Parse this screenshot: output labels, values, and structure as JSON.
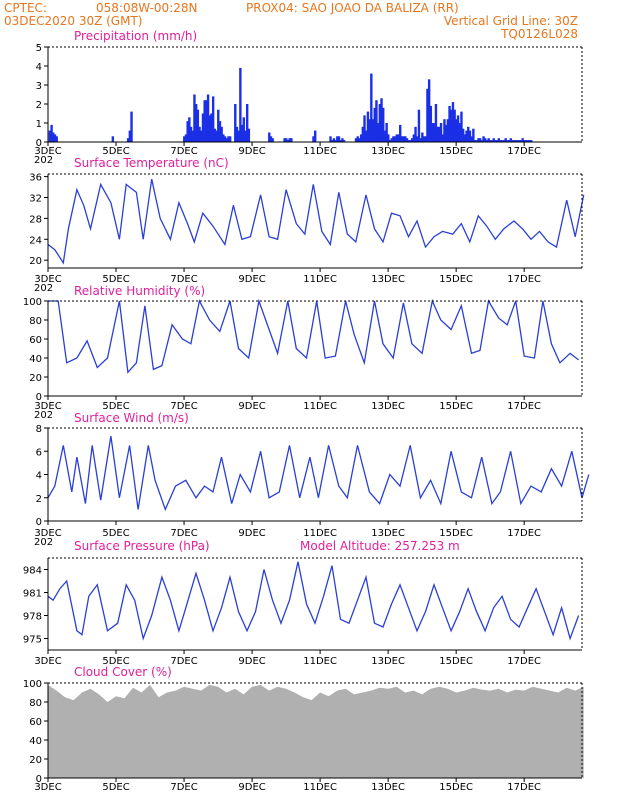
{
  "header": {
    "line1_left": "CPTEC:",
    "coords": "058:08W-00:28N",
    "station": "PROX04: SAO JOAO DA BALIZA (RR)",
    "date": "03DEC2020 30Z (GMT)",
    "grid_note": "Vertical Grid Line: 30Z",
    "model_code": "TQ0126L028"
  },
  "x_ticks": [
    "3DEC",
    "5DEC",
    "7DEC",
    "9DEC",
    "11DEC",
    "13DEC",
    "15DEC",
    "17DEC"
  ],
  "x_overlap_label": "202",
  "colors": {
    "line": "#2a3fd6",
    "bar": "#1a2fe6",
    "cloud": "#b0b0b0",
    "title": "#e0209a",
    "header": "#e8761e"
  },
  "chart_data": [
    {
      "type": "bar",
      "title": "Precipitation (mm/h)",
      "ylim": [
        0,
        5
      ],
      "yticks": [
        0,
        1,
        2,
        3,
        4,
        5
      ],
      "x_unit": "days since 3DEC",
      "x": [
        0.05,
        0.1,
        0.15,
        0.2,
        0.25,
        1.9,
        2.35,
        2.4,
        2.45,
        4.0,
        4.05,
        4.1,
        4.15,
        4.2,
        4.25,
        4.3,
        4.35,
        4.4,
        4.45,
        4.5,
        4.55,
        4.6,
        4.65,
        4.7,
        4.75,
        4.8,
        4.85,
        4.9,
        4.95,
        5.0,
        5.05,
        5.1,
        5.15,
        5.2,
        5.25,
        5.3,
        5.35,
        5.5,
        5.55,
        5.6,
        5.65,
        5.7,
        5.75,
        5.8,
        5.85,
        5.9,
        6.5,
        6.55,
        6.6,
        6.95,
        7.0,
        7.05,
        7.1,
        7.15,
        7.8,
        7.85,
        8.3,
        8.35,
        8.4,
        8.45,
        8.5,
        8.55,
        8.6,
        8.65,
        8.7,
        9.05,
        9.1,
        9.15,
        9.2,
        9.25,
        9.3,
        9.35,
        9.4,
        9.45,
        9.5,
        9.55,
        9.6,
        9.65,
        9.7,
        9.75,
        9.8,
        9.85,
        9.9,
        9.95,
        10.0,
        10.05,
        10.1,
        10.15,
        10.2,
        10.25,
        10.3,
        10.35,
        10.4,
        10.45,
        10.5,
        10.55,
        10.6,
        10.65,
        10.7,
        10.75,
        10.8,
        10.85,
        10.9,
        10.95,
        11.0,
        11.05,
        11.1,
        11.15,
        11.2,
        11.25,
        11.3,
        11.35,
        11.4,
        11.45,
        11.5,
        11.55,
        11.6,
        11.65,
        11.7,
        11.75,
        11.8,
        11.85,
        11.9,
        11.95,
        12.0,
        12.05,
        12.1,
        12.15,
        12.2,
        12.25,
        12.3,
        12.35,
        12.4,
        12.45,
        12.5,
        12.55,
        12.6,
        12.65,
        12.7,
        12.75,
        12.8,
        12.85,
        12.9,
        12.95,
        13.0,
        13.05,
        13.1,
        13.15,
        13.2,
        13.25,
        13.3,
        13.35,
        13.4,
        13.45,
        13.5,
        13.55,
        13.6,
        13.65,
        13.7,
        13.75,
        13.8,
        13.85,
        13.9,
        13.95,
        14.0,
        14.05,
        14.1,
        14.15,
        14.2
      ],
      "values": [
        0.6,
        0.9,
        0.5,
        0.4,
        0.3,
        0.3,
        0.2,
        0.6,
        1.6,
        0.3,
        0.4,
        1.1,
        1.3,
        0.8,
        0.6,
        2.5,
        2.0,
        1.7,
        0.8,
        0.6,
        1.5,
        2.2,
        2.2,
        2.5,
        1.4,
        1.5,
        2.4,
        0.7,
        0.6,
        1.7,
        1.1,
        0.8,
        0.4,
        0.3,
        0.2,
        0.3,
        0.3,
        2.0,
        0.8,
        0.6,
        3.9,
        0.9,
        1.3,
        0.6,
        2.0,
        0.7,
        0.5,
        0.3,
        0.2,
        0.2,
        0.2,
        0.1,
        0.2,
        0.2,
        0.3,
        0.6,
        0.3,
        0.1,
        0.2,
        0.1,
        0.3,
        0.3,
        0.1,
        0.2,
        0.1,
        0.2,
        0.3,
        0.2,
        0.4,
        0.8,
        1.4,
        0.6,
        1.6,
        1.2,
        3.6,
        1.2,
        1.8,
        2.2,
        1.0,
        2.0,
        2.3,
        1.8,
        0.6,
        1.0,
        0.4,
        0.1,
        0.2,
        0.3,
        0.3,
        0.4,
        0.4,
        0.9,
        0.3,
        0.3,
        0.3,
        0.2,
        0.1,
        0.1,
        0.2,
        0.4,
        0.8,
        0.3,
        1.7,
        0.2,
        0.5,
        0.3,
        0.3,
        2.8,
        3.3,
        1.9,
        1.0,
        1.0,
        2.0,
        0.8,
        0.8,
        1.0,
        0.4,
        1.2,
        0.9,
        1.2,
        1.9,
        1.7,
        2.1,
        1.7,
        1.2,
        1.4,
        1.0,
        1.6,
        0.7,
        0.4,
        0.6,
        0.8,
        0.6,
        0.3,
        0.7,
        0.1,
        0.1,
        0.2,
        0.2,
        0.1,
        0.3,
        0.2,
        0.1,
        0.2,
        0.1,
        0.1,
        0.2,
        0.1,
        0.1,
        0.2,
        0.1,
        0.1,
        0.1,
        0.2,
        0.1,
        0.1,
        0.2,
        0.1,
        0.1,
        0.1,
        0.1,
        0.1,
        0.1,
        0.2,
        0.1,
        0.1,
        0.1,
        0.1,
        0.1
      ]
    },
    {
      "type": "line",
      "title": "Surface Temperature (nC)",
      "ylim": [
        18.5,
        36.5
      ],
      "yticks": [
        20,
        24,
        28,
        32,
        36
      ],
      "x_unit": "days since 3DEC",
      "x": [
        0.0,
        0.2,
        0.45,
        0.6,
        0.85,
        1.05,
        1.25,
        1.55,
        1.85,
        2.1,
        2.3,
        2.6,
        2.8,
        3.05,
        3.3,
        3.6,
        3.85,
        4.1,
        4.3,
        4.55,
        4.85,
        5.2,
        5.45,
        5.7,
        5.95,
        6.25,
        6.5,
        6.75,
        7.0,
        7.3,
        7.55,
        7.8,
        8.05,
        8.3,
        8.55,
        8.8,
        9.05,
        9.35,
        9.6,
        9.85,
        10.1,
        10.35,
        10.6,
        10.85,
        11.1,
        11.35,
        11.6,
        11.9,
        12.15,
        12.4,
        12.65,
        12.9,
        13.15,
        13.4,
        13.7,
        13.95,
        14.2,
        14.45,
        14.7,
        14.95,
        15.25,
        15.5,
        15.75
      ],
      "values": [
        23.0,
        22.0,
        19.5,
        26.0,
        33.5,
        30.5,
        26.0,
        34.5,
        31.0,
        24.0,
        34.5,
        33.0,
        24.0,
        35.5,
        28.0,
        24.0,
        31.0,
        27.0,
        23.5,
        29.0,
        26.5,
        23.0,
        30.5,
        24.0,
        24.5,
        32.5,
        24.5,
        24.0,
        33.5,
        27.0,
        25.0,
        34.5,
        25.5,
        23.0,
        33.0,
        25.0,
        23.5,
        32.5,
        26.0,
        23.5,
        29.0,
        28.5,
        24.5,
        27.5,
        22.5,
        24.5,
        25.5,
        25.0,
        27.0,
        23.5,
        28.5,
        26.5,
        24.0,
        26.0,
        27.5,
        26.0,
        24.0,
        25.5,
        23.5,
        22.5,
        31.5,
        24.5,
        32.5
      ]
    },
    {
      "type": "line",
      "title": "Relative Humidity (%)",
      "ylim": [
        0,
        100
      ],
      "yticks": [
        0,
        20,
        40,
        60,
        80,
        100
      ],
      "x_unit": "days since 3DEC",
      "x": [
        0.0,
        0.3,
        0.55,
        0.85,
        1.15,
        1.45,
        1.75,
        2.1,
        2.35,
        2.6,
        2.85,
        3.1,
        3.35,
        3.65,
        3.95,
        4.2,
        4.45,
        4.75,
        5.05,
        5.35,
        5.6,
        5.9,
        6.2,
        6.5,
        6.75,
        7.05,
        7.3,
        7.6,
        7.9,
        8.15,
        8.45,
        8.75,
        9.0,
        9.3,
        9.6,
        9.85,
        10.15,
        10.45,
        10.7,
        11.0,
        11.3,
        11.55,
        11.85,
        12.15,
        12.45,
        12.7,
        12.95,
        13.25,
        13.5,
        13.75,
        14.0,
        14.3,
        14.55,
        14.8,
        15.05,
        15.35,
        15.6
      ],
      "values": [
        100,
        100,
        35,
        40,
        58,
        30,
        40,
        100,
        25,
        35,
        95,
        28,
        32,
        75,
        60,
        55,
        100,
        80,
        68,
        100,
        50,
        40,
        100,
        70,
        45,
        100,
        50,
        40,
        100,
        40,
        42,
        100,
        65,
        35,
        100,
        55,
        40,
        98,
        55,
        45,
        100,
        80,
        70,
        95,
        45,
        48,
        100,
        82,
        75,
        100,
        42,
        40,
        100,
        55,
        35,
        45,
        38
      ]
    },
    {
      "type": "line",
      "title": "Surface Wind (m/s)",
      "ylim": [
        0,
        8
      ],
      "yticks": [
        0,
        2,
        4,
        6,
        8
      ],
      "x_unit": "days since 3DEC",
      "x": [
        0.0,
        0.2,
        0.45,
        0.7,
        0.85,
        1.1,
        1.3,
        1.55,
        1.85,
        2.1,
        2.4,
        2.65,
        2.95,
        3.15,
        3.45,
        3.75,
        4.05,
        4.35,
        4.6,
        4.85,
        5.1,
        5.4,
        5.65,
        5.95,
        6.25,
        6.5,
        6.8,
        7.1,
        7.4,
        7.7,
        7.95,
        8.25,
        8.55,
        8.8,
        9.1,
        9.45,
        9.75,
        10.05,
        10.35,
        10.65,
        10.95,
        11.25,
        11.55,
        11.85,
        12.15,
        12.45,
        12.75,
        13.05,
        13.3,
        13.6,
        13.9,
        14.2,
        14.5,
        14.8,
        15.1,
        15.4,
        15.7,
        15.9
      ],
      "values": [
        2.0,
        3.0,
        6.5,
        2.5,
        5.5,
        1.5,
        6.5,
        1.8,
        7.3,
        2.0,
        6.5,
        1.0,
        6.5,
        3.5,
        1.0,
        3.0,
        3.5,
        2.0,
        3.0,
        2.5,
        5.5,
        1.5,
        4.0,
        2.5,
        6.0,
        2.0,
        2.5,
        6.5,
        2.0,
        5.5,
        2.0,
        6.5,
        3.0,
        2.0,
        6.5,
        2.5,
        1.5,
        4.0,
        3.0,
        6.5,
        2.0,
        3.5,
        1.5,
        6.0,
        2.5,
        2.0,
        5.5,
        1.5,
        2.5,
        6.0,
        1.5,
        3.0,
        2.5,
        4.5,
        3.0,
        6.0,
        2.0,
        4.0
      ]
    },
    {
      "type": "line",
      "title": "Surface Pressure (hPa)",
      "subtitle": "Model Altitude: 257.253 m",
      "ylim": [
        973.5,
        985.5
      ],
      "yticks": [
        975,
        978,
        981,
        984
      ],
      "x_unit": "days since 3DEC",
      "x": [
        0.0,
        0.15,
        0.35,
        0.55,
        0.85,
        1.0,
        1.2,
        1.45,
        1.75,
        2.05,
        2.3,
        2.55,
        2.8,
        3.05,
        3.35,
        3.6,
        3.85,
        4.05,
        4.35,
        4.6,
        4.85,
        5.1,
        5.35,
        5.6,
        5.85,
        6.1,
        6.35,
        6.6,
        6.85,
        7.1,
        7.35,
        7.6,
        7.85,
        8.1,
        8.35,
        8.6,
        8.85,
        9.1,
        9.35,
        9.6,
        9.85,
        10.1,
        10.35,
        10.6,
        10.85,
        11.1,
        11.35,
        11.6,
        11.85,
        12.1,
        12.35,
        12.6,
        12.85,
        13.1,
        13.35,
        13.6,
        13.85,
        14.1,
        14.35,
        14.6,
        14.85,
        15.1,
        15.35,
        15.6
      ],
      "values": [
        980.5,
        980.0,
        981.5,
        982.5,
        976.0,
        975.5,
        980.5,
        982.0,
        976.0,
        977.0,
        982.0,
        980.0,
        975.0,
        978.0,
        983.0,
        980.0,
        976.0,
        979.0,
        983.5,
        980.0,
        976.0,
        979.0,
        983.0,
        978.5,
        976.0,
        978.5,
        984.0,
        980.0,
        977.0,
        980.0,
        985.0,
        979.5,
        977.0,
        980.5,
        984.5,
        977.5,
        977.0,
        980.0,
        983.0,
        977.0,
        976.5,
        979.5,
        982.0,
        979.0,
        976.0,
        978.5,
        982.0,
        979.0,
        976.0,
        978.5,
        981.5,
        978.5,
        976.0,
        979.0,
        980.5,
        977.5,
        976.5,
        979.0,
        981.5,
        978.5,
        975.5,
        979.0,
        975.0,
        978.0
      ]
    },
    {
      "type": "area",
      "title": "Cloud Cover (%)",
      "ylim": [
        0,
        100
      ],
      "yticks": [
        0,
        20,
        40,
        60,
        80,
        100
      ],
      "x_unit": "days since 3DEC",
      "x": [
        0.0,
        0.25,
        0.5,
        0.75,
        1.0,
        1.25,
        1.5,
        1.75,
        2.0,
        2.25,
        2.5,
        2.75,
        3.0,
        3.25,
        3.5,
        3.75,
        4.0,
        4.25,
        4.5,
        4.75,
        5.0,
        5.25,
        5.5,
        5.75,
        6.0,
        6.25,
        6.5,
        6.75,
        7.0,
        7.25,
        7.5,
        7.75,
        8.0,
        8.25,
        8.5,
        8.75,
        9.0,
        9.25,
        9.5,
        9.75,
        10.0,
        10.25,
        10.5,
        10.75,
        11.0,
        11.25,
        11.5,
        11.75,
        12.0,
        12.25,
        12.5,
        12.75,
        13.0,
        13.25,
        13.5,
        13.75,
        14.0,
        14.25,
        14.5,
        14.75,
        15.0,
        15.25,
        15.5,
        15.75
      ],
      "values": [
        98,
        92,
        85,
        82,
        90,
        94,
        88,
        80,
        86,
        84,
        95,
        90,
        98,
        85,
        90,
        92,
        96,
        94,
        92,
        98,
        96,
        90,
        94,
        88,
        96,
        98,
        92,
        96,
        94,
        90,
        85,
        82,
        90,
        86,
        92,
        94,
        88,
        90,
        92,
        95,
        94,
        96,
        90,
        92,
        88,
        94,
        96,
        94,
        90,
        92,
        95,
        93,
        92,
        94,
        90,
        93,
        92,
        96,
        94,
        92,
        90,
        95,
        92,
        96
      ]
    }
  ]
}
